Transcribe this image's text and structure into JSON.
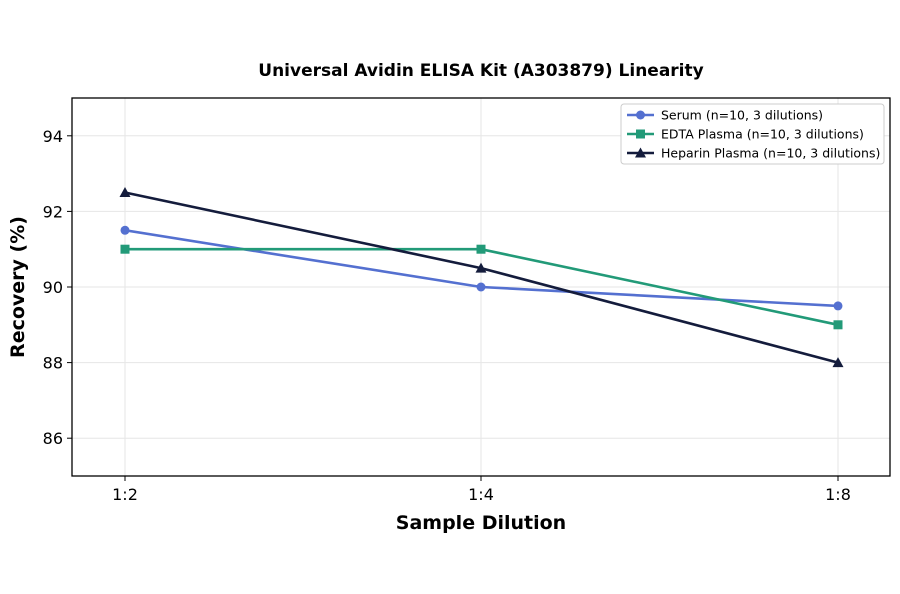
{
  "chart_data": {
    "type": "line",
    "title": "Universal Avidin ELISA Kit (A303879) Linearity",
    "xlabel": "Sample Dilution",
    "ylabel": "Recovery (%)",
    "categories": [
      "1:2",
      "1:4",
      "1:8"
    ],
    "ylim": [
      85,
      95
    ],
    "yticks": [
      86,
      88,
      90,
      92,
      94
    ],
    "grid": true,
    "legend_position": "top-right",
    "series": [
      {
        "name": "Serum (n=10, 3 dilutions)",
        "values": [
          91.5,
          90.0,
          89.5
        ],
        "color": "#5470d0",
        "marker": "circle"
      },
      {
        "name": "EDTA Plasma (n=10, 3 dilutions)",
        "values": [
          91.0,
          91.0,
          89.0
        ],
        "color": "#229a78",
        "marker": "square"
      },
      {
        "name": "Heparin Plasma (n=10, 3 dilutions)",
        "values": [
          92.5,
          90.5,
          88.0
        ],
        "color": "#141c3c",
        "marker": "triangle"
      }
    ]
  }
}
